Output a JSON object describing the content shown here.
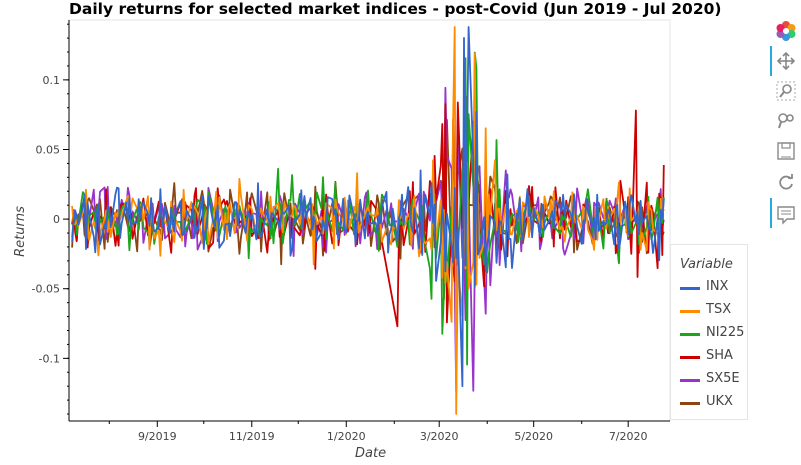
{
  "chart_data": {
    "type": "line",
    "title": "Daily returns for selected market indices - post-Covid (Jun 2019 - Jul 2020)",
    "xlabel": "Date",
    "ylabel": "Returns",
    "x_ticks": [
      "9/2019",
      "11/2019",
      "1/2020",
      "3/2020",
      "5/2020",
      "7/2020"
    ],
    "y_ticks": [
      "-0.1",
      "-0.05",
      "0",
      "0.05",
      "0.1"
    ],
    "y_tick_values": [
      -0.1,
      -0.05,
      0,
      0.05,
      0.1
    ],
    "ylim": [
      -0.145,
      0.143
    ],
    "xlim": [
      "2019-07-06",
      "2020-07-28"
    ],
    "grid": false,
    "legend": {
      "title": "Variable",
      "placement": "right"
    },
    "series": [
      {
        "name": "INX",
        "color": "#3366cc"
      },
      {
        "name": "TSX",
        "color": "#ff8c00"
      },
      {
        "name": "NI225",
        "color": "#1aa61a"
      },
      {
        "name": "SHA",
        "color": "#cc0000"
      },
      {
        "name": "SX5E",
        "color": "#9933cc"
      },
      {
        "name": "UKX",
        "color": "#8b4513"
      }
    ],
    "annotations": [
      {
        "series": "TSX",
        "date": "2020-03-24",
        "value": 0.119
      },
      {
        "series": "INX",
        "date": "2020-03-16",
        "value": -0.12
      },
      {
        "series": "SX5E",
        "date": "2020-03-12",
        "value": -0.124
      },
      {
        "series": "SHA",
        "date": "2020-02-03",
        "value": -0.077
      },
      {
        "series": "SHA",
        "date": "2020-07-06",
        "value": 0.078
      }
    ]
  },
  "toolbar": {
    "tools": [
      {
        "icon": "bokeh-logo-icon"
      },
      {
        "icon": "pan-icon"
      },
      {
        "icon": "box-zoom-icon"
      },
      {
        "icon": "wheel-zoom-icon"
      },
      {
        "icon": "save-icon"
      },
      {
        "icon": "reset-icon"
      },
      {
        "icon": "hover-icon"
      }
    ]
  }
}
